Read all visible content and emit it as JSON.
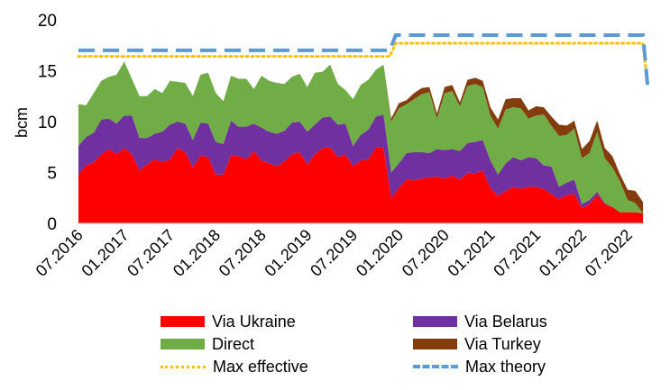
{
  "chart_data": {
    "type": "area",
    "ylabel": "bcm",
    "ylim": [
      0,
      20
    ],
    "yticks": [
      "0",
      "5",
      "10",
      "15",
      "20"
    ],
    "xtick_labels": [
      "07.2016",
      "01.2017",
      "07.2017",
      "01.2018",
      "07.2018",
      "01.2019",
      "07.2019",
      "01.2020",
      "07.2020",
      "01.2021",
      "07.2021",
      "01.2022",
      "07.2022"
    ],
    "stacked": true,
    "series": [
      {
        "name": "Via Ukraine",
        "color": "#ff0000",
        "values": [
          4.8,
          5.7,
          6.0,
          6.8,
          7.3,
          6.8,
          7.4,
          6.8,
          5.2,
          5.8,
          6.3,
          6.0,
          6.3,
          7.4,
          7.0,
          5.5,
          6.7,
          6.5,
          4.8,
          4.8,
          6.7,
          6.6,
          6.3,
          7.1,
          6.2,
          5.9,
          5.6,
          6.1,
          6.8,
          7.0,
          5.8,
          6.8,
          7.4,
          7.5,
          6.5,
          6.8,
          5.6,
          6.2,
          6.3,
          7.5,
          7.4,
          2.5,
          3.5,
          4.3,
          4.2,
          4.4,
          4.5,
          4.6,
          4.4,
          4.7,
          4.3,
          5.0,
          4.9,
          5.2,
          3.5,
          2.7,
          3.2,
          3.6,
          3.4,
          3.6,
          3.6,
          3.4,
          2.9,
          2.4,
          2.8,
          2.9,
          1.5,
          1.9,
          2.8,
          1.9,
          1.6,
          1.1,
          1.1,
          1.1,
          1.0
        ]
      },
      {
        "name": "Via Belarus",
        "color": "#7030a0",
        "values": [
          2.8,
          2.8,
          2.9,
          3.4,
          3.0,
          3.0,
          3.2,
          3.8,
          3.2,
          2.6,
          2.5,
          3.0,
          3.4,
          2.6,
          2.8,
          2.7,
          3.2,
          3.3,
          3.2,
          3.0,
          3.4,
          2.9,
          3.2,
          2.7,
          3.2,
          3.1,
          3.2,
          3.0,
          3.1,
          3.0,
          3.2,
          2.9,
          3.0,
          3.0,
          3.2,
          3.0,
          2.0,
          2.5,
          2.9,
          3.0,
          3.3,
          2.5,
          2.4,
          2.6,
          2.8,
          2.6,
          2.4,
          2.7,
          2.8,
          2.6,
          2.8,
          2.9,
          3.1,
          3.0,
          2.7,
          2.1,
          2.7,
          2.9,
          2.8,
          2.9,
          2.8,
          2.3,
          2.7,
          1.2,
          1.2,
          1.4,
          0.4,
          0.4,
          0.3,
          0.1,
          0.0,
          0.0,
          0.0,
          0.0,
          0.0
        ]
      },
      {
        "name": "Direct",
        "color": "#70ad47",
        "values": [
          4.1,
          3.1,
          3.9,
          3.8,
          4.1,
          4.8,
          5.3,
          3.6,
          4.1,
          4.1,
          4.4,
          3.8,
          4.3,
          3.9,
          4.0,
          4.3,
          4.7,
          5.0,
          4.8,
          4.2,
          4.4,
          4.7,
          4.7,
          3.4,
          5.1,
          5.0,
          5.0,
          4.6,
          4.5,
          4.7,
          4.4,
          5.1,
          4.5,
          5.1,
          4.0,
          3.3,
          4.6,
          4.9,
          4.9,
          4.6,
          4.9,
          5.0,
          5.4,
          4.8,
          5.2,
          5.7,
          6.0,
          3.0,
          5.6,
          5.7,
          4.4,
          5.6,
          5.7,
          5.2,
          4.4,
          4.5,
          5.3,
          4.9,
          5.1,
          3.8,
          4.2,
          5.0,
          4.0,
          5.0,
          4.7,
          5.0,
          4.5,
          4.6,
          5.9,
          4.4,
          3.9,
          3.0,
          1.2,
          0.9,
          0.0
        ]
      },
      {
        "name": "Via Turkey",
        "color": "#843c0c",
        "values": [
          0,
          0,
          0,
          0,
          0,
          0,
          0,
          0,
          0,
          0,
          0,
          0,
          0,
          0,
          0,
          0,
          0,
          0,
          0,
          0,
          0,
          0,
          0,
          0,
          0,
          0,
          0,
          0,
          0,
          0,
          0,
          0,
          0,
          0,
          0,
          0,
          0,
          0,
          0,
          0,
          0,
          0.3,
          0.5,
          0.4,
          0.6,
          0.6,
          0.5,
          0.5,
          0.6,
          0.6,
          0.4,
          0.6,
          0.6,
          0.6,
          0.8,
          0.9,
          1.0,
          0.9,
          1.0,
          0.8,
          0.9,
          0.7,
          0.9,
          1.1,
          0.9,
          0.8,
          0.9,
          1.2,
          1.1,
          1.0,
          1.1,
          0.7,
          1.0,
          1.2,
          1.1
        ]
      }
    ],
    "lines": [
      {
        "name": "Max effective",
        "color": "#ffc000",
        "style": "dotted",
        "points": [
          [
            0,
            16.4
          ],
          [
            40.8,
            16.4
          ],
          [
            41.6,
            17.7
          ],
          [
            74,
            17.7
          ],
          [
            74.6,
            13.6
          ]
        ]
      },
      {
        "name": "Max theory",
        "color": "#5b9bd5",
        "style": "dashed",
        "points": [
          [
            0,
            17.0
          ],
          [
            40.8,
            17.0
          ],
          [
            41.6,
            18.5
          ],
          [
            74,
            18.5
          ],
          [
            74.6,
            13.6
          ]
        ]
      }
    ]
  },
  "legend": [
    {
      "label": "Via Ukraine",
      "kind": "area",
      "color": "#ff0000"
    },
    {
      "label": "Via Belarus",
      "kind": "area",
      "color": "#7030a0"
    },
    {
      "label": "Direct",
      "kind": "area",
      "color": "#70ad47"
    },
    {
      "label": "Via Turkey",
      "kind": "area",
      "color": "#843c0c"
    },
    {
      "label": "Max effective",
      "kind": "dotted",
      "color": "#ffc000"
    },
    {
      "label": "Max theory",
      "kind": "dashed",
      "color": "#5b9bd5"
    }
  ]
}
